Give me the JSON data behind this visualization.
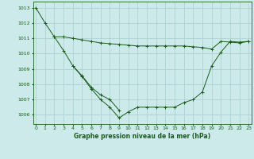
{
  "x": [
    0,
    1,
    2,
    3,
    4,
    5,
    6,
    7,
    8,
    9,
    10,
    11,
    12,
    13,
    14,
    15,
    16,
    17,
    18,
    19,
    20,
    21,
    22,
    23
  ],
  "line1": [
    1013.0,
    1012.0,
    1011.1,
    1011.1,
    1011.0,
    1010.9,
    1010.8,
    1010.7,
    1010.65,
    1010.6,
    1010.55,
    1010.5,
    1010.5,
    1010.5,
    1010.5,
    1010.5,
    1010.5,
    1010.45,
    1010.4,
    1010.3,
    1010.8,
    1010.75,
    1010.7,
    1010.8
  ],
  "line2": [
    null,
    null,
    1011.1,
    1010.2,
    1009.2,
    1008.55,
    1007.8,
    1007.3,
    1007.0,
    1006.3,
    null,
    null,
    null,
    null,
    null,
    null,
    null,
    null,
    null,
    null,
    null,
    null,
    null,
    null
  ],
  "line3": [
    null,
    null,
    null,
    null,
    1009.2,
    1008.5,
    1007.7,
    1007.0,
    1006.5,
    1005.8,
    1006.2,
    1006.5,
    1006.5,
    1006.5,
    1006.5,
    1006.5,
    1006.8,
    1007.0,
    1007.5,
    1009.2,
    1010.1,
    1010.8,
    1010.75,
    1010.8
  ],
  "ylim_min": 1005.4,
  "ylim_max": 1013.4,
  "yticks": [
    1006,
    1007,
    1008,
    1009,
    1010,
    1011,
    1012,
    1013
  ],
  "xlim_min": -0.3,
  "xlim_max": 23.3,
  "xlabel": "Graphe pression niveau de la mer (hPa)",
  "bg_color": "#cceaea",
  "grid_color": "#aacccc",
  "line_color": "#1a5c1a",
  "label_color": "#1a5c1a"
}
